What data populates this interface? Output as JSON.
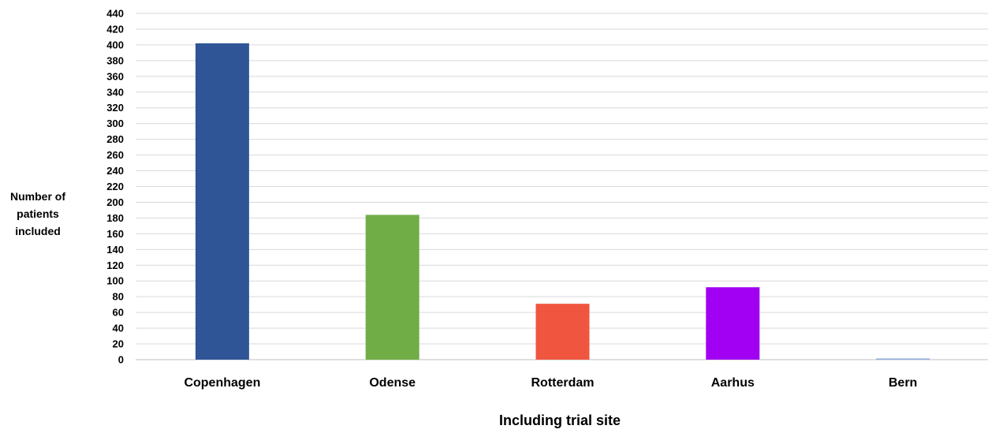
{
  "chart_data": {
    "type": "bar",
    "title": "",
    "xlabel": "Including trial site",
    "ylabel_lines": [
      "Number of",
      "patients",
      "included"
    ],
    "categories": [
      "Copenhagen",
      "Odense",
      "Rotterdam",
      "Aarhus",
      "Bern"
    ],
    "values": [
      402,
      184,
      71,
      92,
      1
    ],
    "colors": [
      "#2F5597",
      "#70AD47",
      "#EF553F",
      "#A100F2",
      "#8EA9DB"
    ],
    "ylim": [
      0,
      440
    ],
    "ytick_step": 20,
    "grid": true,
    "legend": "none"
  }
}
